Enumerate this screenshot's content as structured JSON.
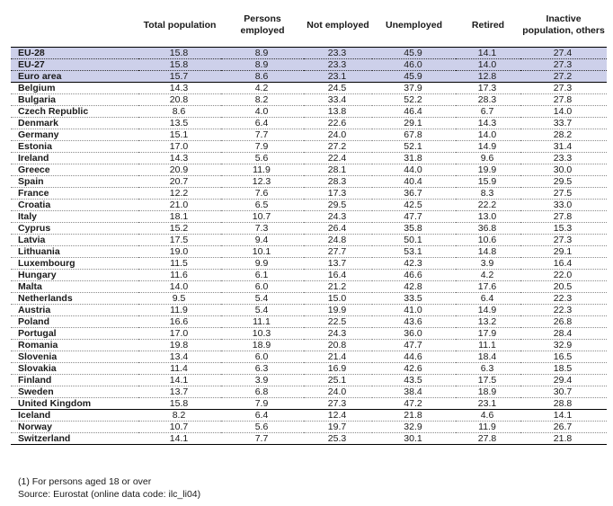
{
  "columns": [
    "",
    "Total population",
    "Persons employed",
    "Not employed",
    "Unemployed",
    "Retired",
    "Inactive population, others"
  ],
  "rows": [
    {
      "name": "EU-28",
      "values": [
        "15.8",
        "8.9",
        "23.3",
        "45.9",
        "14.1",
        "27.4"
      ],
      "style": "hl"
    },
    {
      "name": "EU-27",
      "values": [
        "15.8",
        "8.9",
        "23.3",
        "46.0",
        "14.0",
        "27.3"
      ],
      "style": "hl"
    },
    {
      "name": "Euro area",
      "values": [
        "15.7",
        "8.6",
        "23.1",
        "45.9",
        "12.8",
        "27.2"
      ],
      "style": "hl sep"
    },
    {
      "name": "Belgium",
      "values": [
        "14.3",
        "4.2",
        "24.5",
        "37.9",
        "17.3",
        "27.3"
      ],
      "style": ""
    },
    {
      "name": "Bulgaria",
      "values": [
        "20.8",
        "8.2",
        "33.4",
        "52.2",
        "28.3",
        "27.8"
      ],
      "style": ""
    },
    {
      "name": "Czech Republic",
      "values": [
        "8.6",
        "4.0",
        "13.8",
        "46.4",
        "6.7",
        "14.0"
      ],
      "style": ""
    },
    {
      "name": "Denmark",
      "values": [
        "13.5",
        "6.4",
        "22.6",
        "29.1",
        "14.3",
        "33.7"
      ],
      "style": ""
    },
    {
      "name": "Germany",
      "values": [
        "15.1",
        "7.7",
        "24.0",
        "67.8",
        "14.0",
        "28.2"
      ],
      "style": ""
    },
    {
      "name": "Estonia",
      "values": [
        "17.0",
        "7.9",
        "27.2",
        "52.1",
        "14.9",
        "31.4"
      ],
      "style": ""
    },
    {
      "name": "Ireland",
      "values": [
        "14.3",
        "5.6",
        "22.4",
        "31.8",
        "9.6",
        "23.3"
      ],
      "style": ""
    },
    {
      "name": "Greece",
      "values": [
        "20.9",
        "11.9",
        "28.1",
        "44.0",
        "19.9",
        "30.0"
      ],
      "style": ""
    },
    {
      "name": "Spain",
      "values": [
        "20.7",
        "12.3",
        "28.3",
        "40.4",
        "15.9",
        "29.5"
      ],
      "style": ""
    },
    {
      "name": "France",
      "values": [
        "12.2",
        "7.6",
        "17.3",
        "36.7",
        "8.3",
        "27.5"
      ],
      "style": ""
    },
    {
      "name": "Croatia",
      "values": [
        "21.0",
        "6.5",
        "29.5",
        "42.5",
        "22.2",
        "33.0"
      ],
      "style": ""
    },
    {
      "name": "Italy",
      "values": [
        "18.1",
        "10.7",
        "24.3",
        "47.7",
        "13.0",
        "27.8"
      ],
      "style": ""
    },
    {
      "name": "Cyprus",
      "values": [
        "15.2",
        "7.3",
        "26.4",
        "35.8",
        "36.8",
        "15.3"
      ],
      "style": ""
    },
    {
      "name": "Latvia",
      "values": [
        "17.5",
        "9.4",
        "24.8",
        "50.1",
        "10.6",
        "27.3"
      ],
      "style": ""
    },
    {
      "name": "Lithuania",
      "values": [
        "19.0",
        "10.1",
        "27.7",
        "53.1",
        "14.8",
        "29.1"
      ],
      "style": ""
    },
    {
      "name": "Luxembourg",
      "values": [
        "11.5",
        "9.9",
        "13.7",
        "42.3",
        "3.9",
        "16.4"
      ],
      "style": ""
    },
    {
      "name": "Hungary",
      "values": [
        "11.6",
        "6.1",
        "16.4",
        "46.6",
        "4.2",
        "22.0"
      ],
      "style": ""
    },
    {
      "name": "Malta",
      "values": [
        "14.0",
        "6.0",
        "21.2",
        "42.8",
        "17.6",
        "20.5"
      ],
      "style": ""
    },
    {
      "name": "Netherlands",
      "values": [
        "9.5",
        "5.4",
        "15.0",
        "33.5",
        "6.4",
        "22.3"
      ],
      "style": ""
    },
    {
      "name": "Austria",
      "values": [
        "11.9",
        "5.4",
        "19.9",
        "41.0",
        "14.9",
        "22.3"
      ],
      "style": ""
    },
    {
      "name": "Poland",
      "values": [
        "16.6",
        "11.1",
        "22.5",
        "43.6",
        "13.2",
        "26.8"
      ],
      "style": ""
    },
    {
      "name": "Portugal",
      "values": [
        "17.0",
        "10.3",
        "24.3",
        "36.0",
        "17.9",
        "28.4"
      ],
      "style": ""
    },
    {
      "name": "Romania",
      "values": [
        "19.8",
        "18.9",
        "20.8",
        "47.7",
        "11.1",
        "32.9"
      ],
      "style": ""
    },
    {
      "name": "Slovenia",
      "values": [
        "13.4",
        "6.0",
        "21.4",
        "44.6",
        "18.4",
        "16.5"
      ],
      "style": ""
    },
    {
      "name": "Slovakia",
      "values": [
        "11.4",
        "6.3",
        "16.9",
        "42.6",
        "6.3",
        "18.5"
      ],
      "style": ""
    },
    {
      "name": "Finland",
      "values": [
        "14.1",
        "3.9",
        "25.1",
        "43.5",
        "17.5",
        "29.4"
      ],
      "style": ""
    },
    {
      "name": "Sweden",
      "values": [
        "13.7",
        "6.8",
        "24.0",
        "38.4",
        "18.9",
        "30.7"
      ],
      "style": ""
    },
    {
      "name": "United Kingdom",
      "values": [
        "15.8",
        "7.9",
        "27.3",
        "47.2",
        "23.1",
        "28.8"
      ],
      "style": "sep"
    },
    {
      "name": "Iceland",
      "values": [
        "8.2",
        "6.4",
        "12.4",
        "21.8",
        "4.6",
        "14.1"
      ],
      "style": ""
    },
    {
      "name": "Norway",
      "values": [
        "10.7",
        "5.6",
        "19.7",
        "32.9",
        "11.9",
        "26.7"
      ],
      "style": ""
    },
    {
      "name": "Switzerland",
      "values": [
        "14.1",
        "7.7",
        "25.3",
        "30.1",
        "27.8",
        "21.8"
      ],
      "style": "last"
    }
  ],
  "footnotes": [
    "(1) For persons aged 18 or over",
    "Source: Eurostat (online data code: ilc_li04)"
  ]
}
